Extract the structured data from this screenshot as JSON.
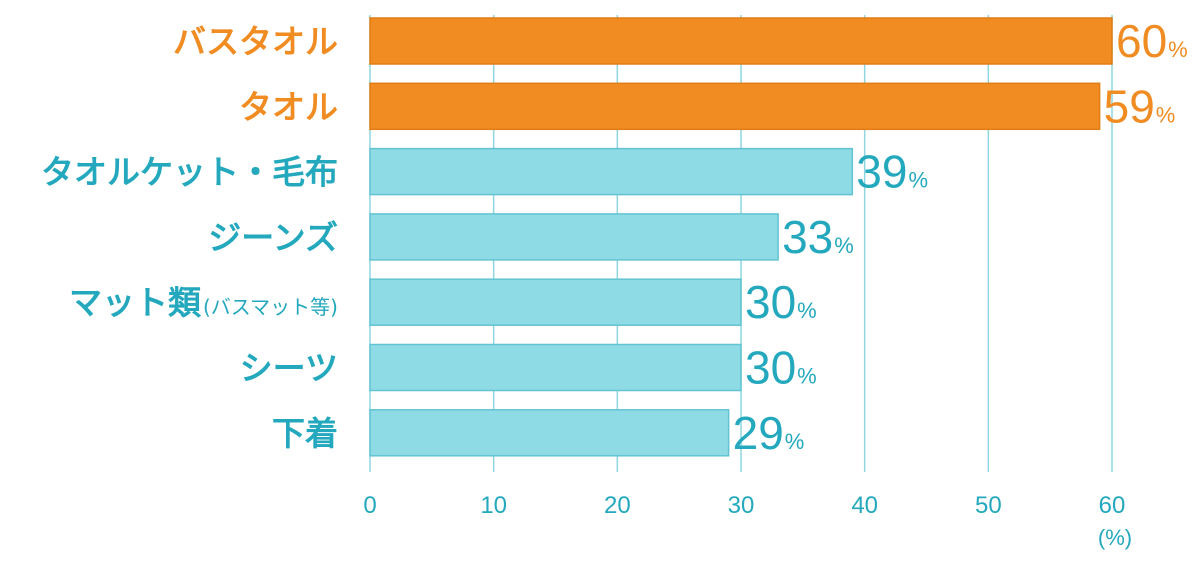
{
  "chart_data": {
    "type": "bar",
    "orientation": "horizontal",
    "categories": [
      "バスタオル",
      "タオル",
      "タオルケット・毛布",
      "ジーンズ",
      "マット類",
      "シーツ",
      "下着"
    ],
    "category_notes": [
      "",
      "",
      "",
      "",
      "(バスマット等)",
      "",
      ""
    ],
    "values": [
      60,
      59,
      39,
      33,
      30,
      30,
      29
    ],
    "value_labels": [
      "60",
      "59",
      "39",
      "33",
      "30",
      "30",
      "29"
    ],
    "value_suffix": "%",
    "highlighted": [
      true,
      true,
      false,
      false,
      false,
      false,
      false
    ],
    "xlim": [
      0,
      60
    ],
    "xticks": [
      "0",
      "10",
      "20",
      "30",
      "40",
      "50",
      "60"
    ],
    "xunit": "(%)",
    "grid": true,
    "legend": "none"
  },
  "colors": {
    "highlight": "#f08c22",
    "normal_bar": "#8edbe5",
    "normal_bar_edge": "#62c4d2",
    "normal_text": "#23a8bd",
    "grid": "#8fd6e0"
  }
}
